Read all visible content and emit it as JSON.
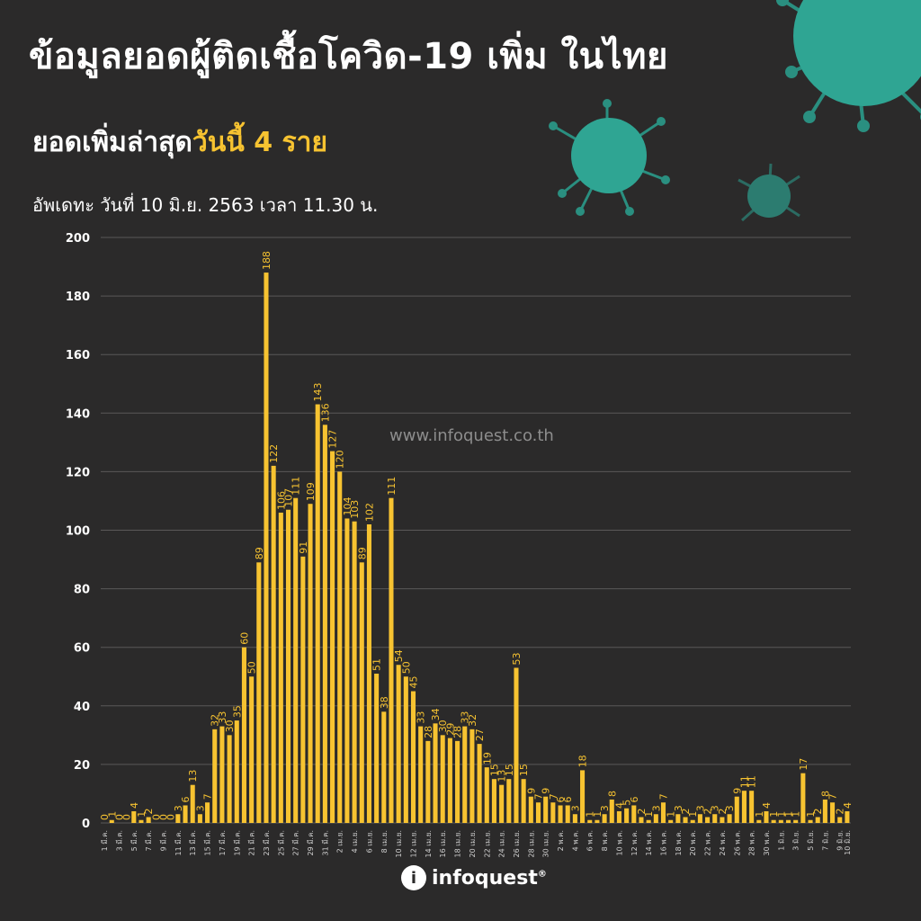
{
  "header": {
    "title": "ข้อมูลยอดผู้ติดเชื้อโควิด-19 เพิ่ม ในไทย",
    "subtitle_prefix": "ยอดเพิ่มล่าสุด",
    "subtitle_highlight": "วันนี้  4 ราย",
    "update": "อัพเดทะ วันที่ 10 มิ.ย. 2563 เวลา 11.30 น."
  },
  "watermark": "www.infoquest.co.th",
  "logo": {
    "mark": "i",
    "text": "infoquest",
    "reg": "®"
  },
  "colors": {
    "background": "#2b2a2a",
    "bar": "#f7c331",
    "grid": "#5a5858",
    "text": "#ffffff",
    "virus": "#2fa593"
  },
  "icons": [
    "virus-icon"
  ],
  "chart_data": {
    "type": "bar",
    "ylim": [
      0,
      200
    ],
    "yticks": [
      0,
      20,
      40,
      60,
      80,
      100,
      120,
      140,
      160,
      180,
      200
    ],
    "grid": true,
    "tick_labels": [
      "1 มี.ค.",
      "3 มี.ค.",
      "5 มี.ค.",
      "7 มี.ค.",
      "9 มี.ค.",
      "11 มี.ค.",
      "13 มี.ค.",
      "15 มี.ค.",
      "17 มี.ค.",
      "19 มี.ค.",
      "21 มี.ค.",
      "23 มี.ค.",
      "25 มี.ค.",
      "27 มี.ค.",
      "29 มี.ค.",
      "31 มี.ค.",
      "2 เม.ย.",
      "4 เม.ย.",
      "6 เม.ย.",
      "8 เม.ย.",
      "10 เม.ย.",
      "12 เม.ย.",
      "14 เม.ย.",
      "16 เม.ย.",
      "18 เม.ย.",
      "20 เม.ย.",
      "22 เม.ย.",
      "24 เม.ย.",
      "26 เม.ย.",
      "28 เม.ย.",
      "30 เม.ย.",
      "2 พ.ค.",
      "4 พ.ค.",
      "6 พ.ค.",
      "8 พ.ค.",
      "10 พ.ค.",
      "12 พ.ค.",
      "14 พ.ค.",
      "16 พ.ค.",
      "18 พ.ค.",
      "20 พ.ค.",
      "22 พ.ค.",
      "24 พ.ค.",
      "26 พ.ค.",
      "28 พ.ค.",
      "30 พ.ค.",
      "1 มิ.ย.",
      "3 มิ.ย.",
      "5 มิ.ย.",
      "7 มิ.ย.",
      "9 มิ.ย.",
      "10 มิ.ย."
    ],
    "values": [
      0,
      1,
      0,
      0,
      4,
      1,
      2,
      0,
      0,
      0,
      3,
      6,
      13,
      3,
      7,
      32,
      33,
      30,
      35,
      60,
      50,
      89,
      188,
      122,
      106,
      107,
      111,
      91,
      109,
      143,
      136,
      127,
      120,
      104,
      103,
      89,
      102,
      51,
      38,
      111,
      54,
      50,
      45,
      33,
      28,
      34,
      30,
      29,
      28,
      33,
      32,
      27,
      19,
      15,
      13,
      15,
      53,
      15,
      9,
      7,
      9,
      7,
      6,
      6,
      3,
      18,
      1,
      1,
      3,
      8,
      4,
      5,
      6,
      2,
      1,
      3,
      7,
      1,
      3,
      2,
      1,
      3,
      2,
      3,
      2,
      3,
      9,
      11,
      11,
      1,
      4,
      1,
      1,
      1,
      1,
      17,
      1,
      2,
      8,
      7,
      2,
      4
    ]
  }
}
